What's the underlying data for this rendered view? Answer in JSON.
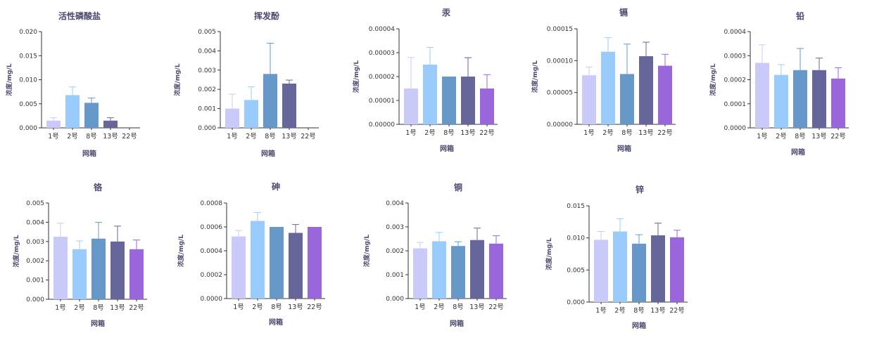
{
  "palette": [
    "#c9c9fa",
    "#99ccfc",
    "#6699c9",
    "#66669a",
    "#9966dc"
  ],
  "chart_data": [
    {
      "type": "bar",
      "title": "活性磷酸盐",
      "xlabel": "网箱",
      "ylabel": "浓度/mg/L",
      "categories": [
        "1号",
        "2号",
        "8号",
        "13号",
        "22号"
      ],
      "values": [
        0.0015,
        0.0068,
        0.0052,
        0.0015,
        0.0
      ],
      "errors": [
        0.0006,
        0.0017,
        0.001,
        0.0006,
        0.0
      ],
      "ylim": [
        0,
        0.02
      ],
      "yticks": [
        "0.000",
        "0.005",
        "0.010",
        "0.015",
        "0.020"
      ]
    },
    {
      "type": "bar",
      "title": "挥发酚",
      "xlabel": "网箱",
      "ylabel": "浓度/mg/L",
      "categories": [
        "1号",
        "2号",
        "8号",
        "13号",
        "22号"
      ],
      "values": [
        0.001,
        0.00145,
        0.0028,
        0.0023,
        0.0
      ],
      "errors": [
        0.00075,
        0.00068,
        0.0016,
        0.00018,
        0.0
      ],
      "ylim": [
        0,
        0.005
      ],
      "yticks": [
        "0.000",
        "0.001",
        "0.002",
        "0.003",
        "0.004",
        "0.005"
      ]
    },
    {
      "type": "bar",
      "title": "汞",
      "xlabel": "网箱",
      "ylabel": "浓度/mg/L",
      "categories": [
        "1号",
        "2号",
        "8号",
        "13号",
        "22号"
      ],
      "values": [
        1.5e-05,
        2.5e-05,
        2e-05,
        2e-05,
        1.5e-05
      ],
      "errors": [
        1.3e-05,
        7.2e-06,
        0.0,
        7.9e-06,
        5.8e-06
      ],
      "ylim": [
        0,
        4e-05
      ],
      "yticks": [
        "0.00000",
        "0.00001",
        "0.00002",
        "0.00003",
        "0.00004"
      ]
    },
    {
      "type": "bar",
      "title": "镉",
      "xlabel": "网箱",
      "ylabel": "浓度/mg/L",
      "categories": [
        "1号",
        "2号",
        "8号",
        "13号",
        "22号"
      ],
      "values": [
        7.7e-05,
        0.000114,
        7.9e-05,
        0.000107,
        9.2e-05
      ],
      "errors": [
        1.3e-05,
        2.2e-05,
        4.7e-05,
        2.2e-05,
        1.8e-05
      ],
      "ylim": [
        0,
        0.00015
      ],
      "yticks": [
        "0.00000",
        "0.00005",
        "0.00010",
        "0.00015"
      ]
    },
    {
      "type": "bar",
      "title": "铅",
      "xlabel": "网箱",
      "ylabel": "浓度/mg/L",
      "categories": [
        "1号",
        "2号",
        "8号",
        "13号",
        "22号"
      ],
      "values": [
        0.00027,
        0.00022,
        0.00024,
        0.00024,
        0.000205
      ],
      "errors": [
        7.5e-05,
        4.3e-05,
        9e-05,
        5e-05,
        4.5e-05
      ],
      "ylim": [
        0,
        0.0004
      ],
      "yticks": [
        "0.0000",
        "0.0001",
        "0.0002",
        "0.0003",
        "0.0004"
      ]
    },
    {
      "type": "bar",
      "title": "铬",
      "xlabel": "网箱",
      "ylabel": "浓度/mg/L",
      "categories": [
        "1号",
        "2号",
        "8号",
        "13号",
        "22号"
      ],
      "values": [
        0.00325,
        0.0026,
        0.00315,
        0.003,
        0.0026
      ],
      "errors": [
        0.0007,
        0.00043,
        0.00085,
        0.0008,
        0.00048
      ],
      "ylim": [
        0,
        0.005
      ],
      "yticks": [
        "0.000",
        "0.001",
        "0.002",
        "0.003",
        "0.004",
        "0.005"
      ]
    },
    {
      "type": "bar",
      "title": "砷",
      "xlabel": "网箱",
      "ylabel": "浓度/mg/L",
      "categories": [
        "1号",
        "2号",
        "8号",
        "13号",
        "22号"
      ],
      "values": [
        0.00052,
        0.00065,
        0.0006,
        0.00055,
        0.0006
      ],
      "errors": [
        5e-05,
        7e-05,
        0.0,
        7e-05,
        0.0
      ],
      "ylim": [
        0,
        0.0008
      ],
      "yticks": [
        "0.0000",
        "0.0002",
        "0.0004",
        "0.0006",
        "0.0008"
      ]
    },
    {
      "type": "bar",
      "title": "铜",
      "xlabel": "网箱",
      "ylabel": "浓度/mg/L",
      "categories": [
        "1号",
        "2号",
        "8号",
        "13号",
        "22号"
      ],
      "values": [
        0.0021,
        0.0024,
        0.0022,
        0.00245,
        0.0023
      ],
      "errors": [
        0.00025,
        0.00037,
        0.00018,
        0.0005,
        0.00033
      ],
      "ylim": [
        0,
        0.004
      ],
      "yticks": [
        "0.000",
        "0.001",
        "0.002",
        "0.003",
        "0.004"
      ]
    },
    {
      "type": "bar",
      "title": "锌",
      "xlabel": "网箱",
      "ylabel": "浓度/mg/L",
      "categories": [
        "1号",
        "2号",
        "8号",
        "13号",
        "22号"
      ],
      "values": [
        0.0097,
        0.011,
        0.0091,
        0.0104,
        0.0101
      ],
      "errors": [
        0.0013,
        0.002,
        0.0014,
        0.0019,
        0.0011
      ],
      "ylim": [
        0,
        0.015
      ],
      "yticks": [
        "0.000",
        "0.005",
        "0.010",
        "0.015"
      ]
    }
  ]
}
